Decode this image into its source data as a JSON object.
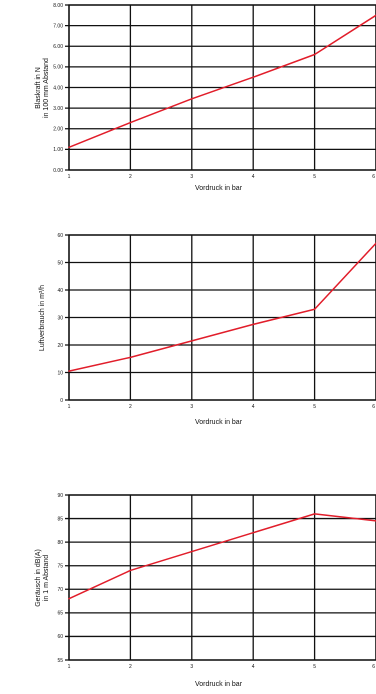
{
  "chart_data": [
    {
      "type": "line",
      "xlabel": "Vordruck in bar",
      "ylabel": [
        "Blaskraft in N",
        "in 100 mm Abstand"
      ],
      "x_ticks": [
        "1",
        "2",
        "3",
        "4",
        "5",
        "6"
      ],
      "y_ticks": [
        "0.00",
        "1.00",
        "2.00",
        "3.00",
        "4.00",
        "5.00",
        "6.00",
        "7.00",
        "8.00"
      ],
      "xlim": [
        1,
        6
      ],
      "ylim": [
        0,
        8
      ],
      "grid": true,
      "series": [
        {
          "x": [
            1,
            2,
            3,
            4,
            5,
            6
          ],
          "y": [
            1.1,
            2.3,
            3.45,
            4.5,
            5.6,
            7.5
          ]
        }
      ]
    },
    {
      "type": "line",
      "xlabel": "Vordruck in bar",
      "ylabel": [
        "Luftverbrauch in m³/h"
      ],
      "x_ticks": [
        "1",
        "2",
        "3",
        "4",
        "5",
        "6"
      ],
      "y_ticks": [
        "0",
        "10",
        "20",
        "30",
        "40",
        "50",
        "60"
      ],
      "xlim": [
        1,
        6
      ],
      "ylim": [
        0,
        60
      ],
      "grid": true,
      "series": [
        {
          "x": [
            1,
            2,
            3,
            4,
            5,
            6
          ],
          "y": [
            10.5,
            15.5,
            21.5,
            27.5,
            33,
            57
          ]
        }
      ]
    },
    {
      "type": "line",
      "xlabel": "Vordruck in bar",
      "ylabel": [
        "Geräusch in dB(A)",
        "in 1 m Abstand"
      ],
      "x_ticks": [
        "1",
        "2",
        "3",
        "4",
        "5",
        "6"
      ],
      "y_ticks": [
        "55",
        "60",
        "65",
        "70",
        "75",
        "80",
        "85",
        "90"
      ],
      "xlim": [
        1,
        6
      ],
      "ylim": [
        55,
        90
      ],
      "grid": true,
      "series": [
        {
          "x": [
            1,
            2,
            3,
            4,
            5,
            6
          ],
          "y": [
            68,
            74,
            78,
            82,
            86,
            84.5
          ]
        }
      ]
    }
  ]
}
